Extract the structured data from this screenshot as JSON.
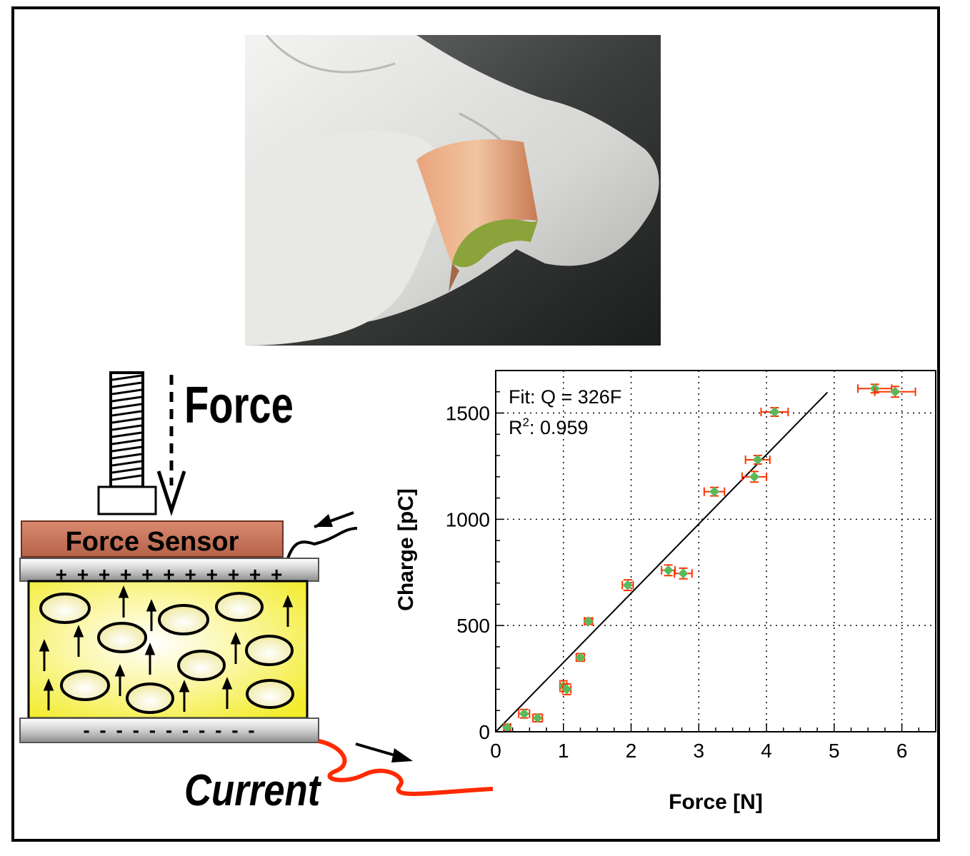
{
  "figure": {
    "diagram": {
      "force_label": "Force",
      "sensor_label": "Force Sensor",
      "current_label": "Current",
      "top_charge_symbols": "+ + + + + + + + + + +",
      "bottom_charge_symbols": "- - - - - - - - - - -"
    },
    "colors": {
      "sensor": "#c8735a",
      "film": "#f4f04a",
      "wire": "#ff2a00",
      "points": "#5cb85c",
      "errorbars": "#ff3300"
    }
  },
  "chart_data": {
    "type": "scatter",
    "xlabel": "Force [N]",
    "ylabel": "Charge [pC]",
    "xlim": [
      0,
      6.5
    ],
    "ylim": [
      0,
      1700
    ],
    "xticks": [
      "0",
      "1",
      "2",
      "3",
      "4",
      "5",
      "6"
    ],
    "yticks": [
      "0",
      "500",
      "1000",
      "1500"
    ],
    "fit_text": "Fit: Q = 326F",
    "r2_prefix": "R",
    "r2_sup": "2",
    "r2_value": ": 0.959",
    "fit_slope": 326,
    "fit_xrange": [
      0,
      4.9
    ],
    "grid": "dotted",
    "points": [
      {
        "x": 0.17,
        "y": 20,
        "xerr": 0.05,
        "yerr": 15
      },
      {
        "x": 0.42,
        "y": 85,
        "xerr": 0.08,
        "yerr": 20
      },
      {
        "x": 0.62,
        "y": 65,
        "xerr": 0.07,
        "yerr": 18
      },
      {
        "x": 1.0,
        "y": 215,
        "xerr": 0.05,
        "yerr": 25
      },
      {
        "x": 1.05,
        "y": 200,
        "xerr": 0.06,
        "yerr": 25
      },
      {
        "x": 1.25,
        "y": 350,
        "xerr": 0.06,
        "yerr": 18
      },
      {
        "x": 1.37,
        "y": 520,
        "xerr": 0.06,
        "yerr": 15
      },
      {
        "x": 1.95,
        "y": 690,
        "xerr": 0.08,
        "yerr": 25
      },
      {
        "x": 2.55,
        "y": 760,
        "xerr": 0.1,
        "yerr": 25
      },
      {
        "x": 2.77,
        "y": 745,
        "xerr": 0.13,
        "yerr": 25
      },
      {
        "x": 3.23,
        "y": 1130,
        "xerr": 0.15,
        "yerr": 20
      },
      {
        "x": 3.82,
        "y": 1200,
        "xerr": 0.18,
        "yerr": 25
      },
      {
        "x": 3.87,
        "y": 1280,
        "xerr": 0.18,
        "yerr": 20
      },
      {
        "x": 4.12,
        "y": 1505,
        "xerr": 0.2,
        "yerr": 20
      },
      {
        "x": 5.6,
        "y": 1615,
        "xerr": 0.25,
        "yerr": 20
      },
      {
        "x": 5.9,
        "y": 1600,
        "xerr": 0.3,
        "yerr": 25
      }
    ]
  }
}
